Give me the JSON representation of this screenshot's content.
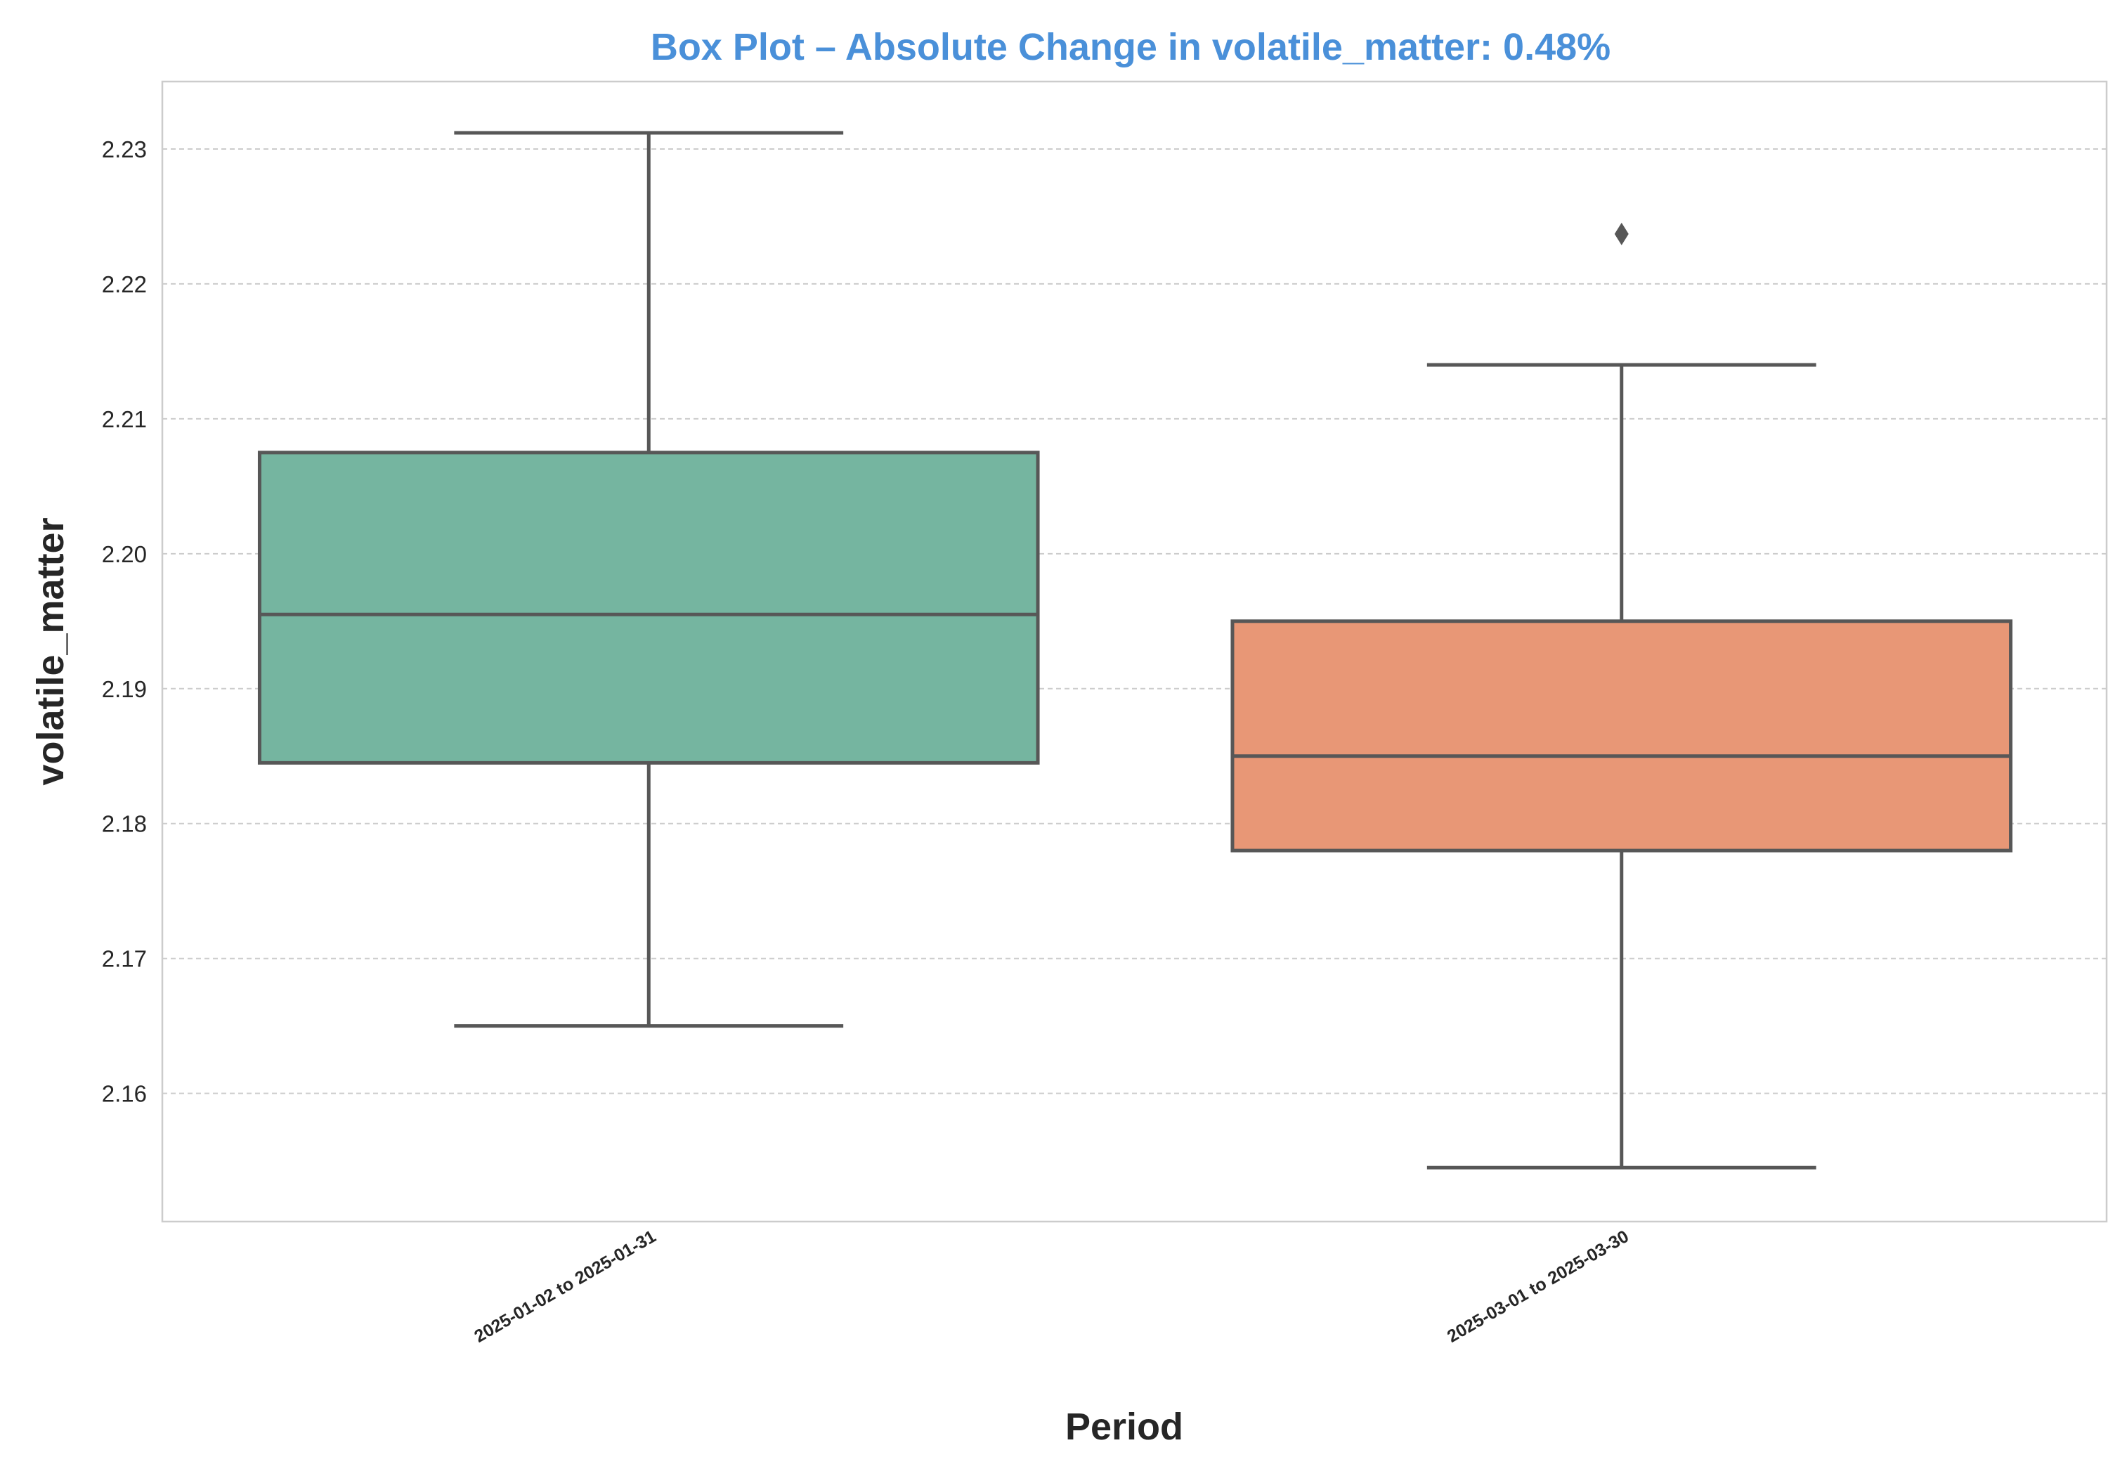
{
  "chart_data": {
    "type": "box",
    "title": "Box Plot – Absolute Change in volatile_matter: 0.48%",
    "xlabel": "Period",
    "ylabel": "volatile_matter",
    "ylim": [
      2.1505,
      2.235
    ],
    "yticks": [
      2.16,
      2.17,
      2.18,
      2.19,
      2.2,
      2.21,
      2.22,
      2.23
    ],
    "ytick_labels": [
      "2.16",
      "2.17",
      "2.18",
      "2.19",
      "2.20",
      "2.21",
      "2.22",
      "2.23"
    ],
    "grid": true,
    "categories": [
      "2025-01-02 to 2025-01-31",
      "2025-03-01 to 2025-03-30"
    ],
    "boxes": [
      {
        "category": "2025-01-02 to 2025-01-31",
        "whisker_low": 2.165,
        "q1": 2.1845,
        "median": 2.1955,
        "q3": 2.2075,
        "whisker_high": 2.2312,
        "outliers": [],
        "color": "#75b5a0"
      },
      {
        "category": "2025-03-01 to 2025-03-30",
        "whisker_low": 2.1545,
        "q1": 2.178,
        "median": 2.185,
        "q3": 2.195,
        "whisker_high": 2.214,
        "outliers": [
          2.2237
        ],
        "color": "#e89776"
      }
    ],
    "colors": {
      "title": "#4a90d9",
      "box_edge": "#575757",
      "grid": "#cccccc",
      "frame": "#cccccc"
    }
  }
}
